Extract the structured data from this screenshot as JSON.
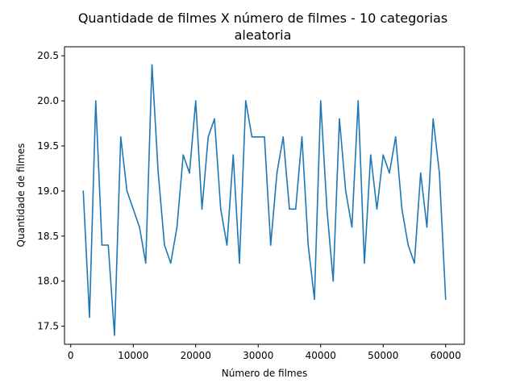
{
  "chart_data": {
    "type": "line",
    "title": [
      "Quantidade de filmes X número de filmes - 10 categorias",
      "aleatoria"
    ],
    "xlabel": "Número de filmes",
    "ylabel": "Quantidade de filmes",
    "xlim": [
      -1000,
      63000
    ],
    "ylim": [
      17.3,
      20.6
    ],
    "xticks": [
      0,
      10000,
      20000,
      30000,
      40000,
      50000,
      60000
    ],
    "xtick_labels": [
      "0",
      "10000",
      "20000",
      "30000",
      "40000",
      "50000",
      "60000"
    ],
    "yticks": [
      17.5,
      18.0,
      18.5,
      19.0,
      19.5,
      20.0,
      20.5
    ],
    "ytick_labels": [
      "17.5",
      "18.0",
      "18.5",
      "19.0",
      "19.5",
      "20.0",
      "20.5"
    ],
    "grid": false,
    "color": "#1f77b4",
    "series": [
      {
        "x": [
          2000,
          3000,
          4000,
          5000,
          6000,
          7000,
          8000,
          9000,
          10000,
          11000,
          12000,
          13000,
          14000,
          15000,
          16000,
          17000,
          18000,
          19000,
          20000,
          21000,
          22000,
          23000,
          24000,
          25000,
          26000,
          27000,
          28000,
          29000,
          30000,
          31000,
          32000,
          33000,
          34000,
          35000,
          36000,
          37000,
          38000,
          39000,
          40000,
          41000,
          42000,
          43000,
          44000,
          45000,
          46000,
          47000,
          48000,
          49000,
          50000,
          51000,
          52000,
          53000,
          54000,
          55000,
          56000,
          57000,
          58000,
          59000,
          60000
        ],
        "values": [
          19.0,
          17.6,
          20.0,
          18.4,
          18.4,
          17.4,
          19.6,
          19.0,
          18.8,
          18.6,
          18.2,
          20.4,
          19.2,
          18.4,
          18.2,
          18.6,
          19.4,
          19.2,
          20.0,
          18.8,
          19.6,
          19.8,
          18.8,
          18.4,
          19.4,
          18.2,
          20.0,
          19.6,
          19.6,
          19.6,
          18.4,
          19.2,
          19.6,
          18.8,
          18.8,
          19.6,
          18.4,
          17.8,
          20.0,
          18.8,
          18.0,
          19.8,
          19.0,
          18.6,
          20.0,
          18.2,
          19.4,
          18.8,
          19.4,
          19.2,
          19.6,
          18.8,
          18.4,
          18.2,
          19.2,
          18.6,
          19.8,
          19.2,
          17.8
        ]
      }
    ]
  }
}
